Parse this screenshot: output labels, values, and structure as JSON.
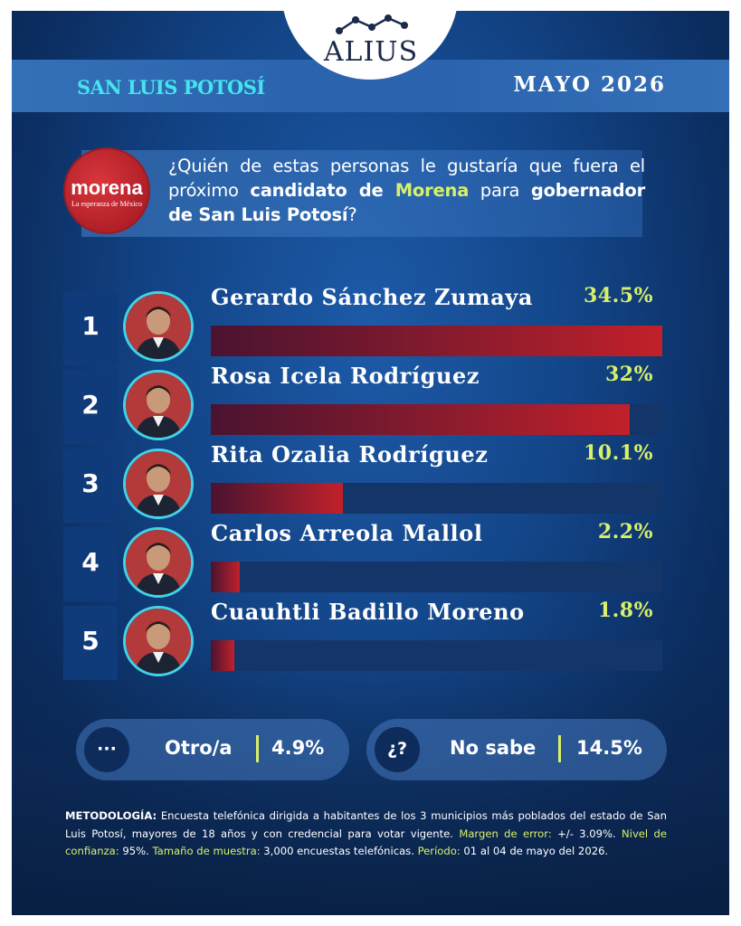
{
  "brand": {
    "name": "ALIUS",
    "region": "SAN LUIS POTOSÍ",
    "date": "MAYO 2026"
  },
  "party_logo": {
    "name": "morena",
    "tagline": "La esperanza de México",
    "color": "#b11f27"
  },
  "question": {
    "p1": "¿Quién de estas personas le gustaría que fuera el próximo ",
    "b1": "candidato de ",
    "b2": "Morena",
    "p2": " para ",
    "b3": "gobernador de San Luis Potosí",
    "p3": "?"
  },
  "chart_data": {
    "type": "bar",
    "orientation": "horizontal",
    "categories": [
      "Gerardo Sánchez Zumaya",
      "Rosa Icela Rodríguez",
      "Rita Ozalia Rodríguez",
      "Carlos Arreola Mallol",
      "Cuauhtli Badillo Moreno"
    ],
    "ranks": [
      "1",
      "2",
      "3",
      "4",
      "5"
    ],
    "values": [
      34.5,
      32,
      10.1,
      2.2,
      1.8
    ],
    "value_labels": [
      "34.5%",
      "32%",
      "10.1%",
      "2.2%",
      "1.8%"
    ],
    "xlim": [
      0,
      34.5
    ],
    "bar_color": "#c2202a",
    "label_color": "#d8f06a"
  },
  "other": {
    "icon": "···",
    "label": "Otro/a",
    "value": "4.9%"
  },
  "unknown": {
    "icon": "¿?",
    "label": "No sabe",
    "value": "14.5%"
  },
  "methodology": {
    "k1": "METODOLOGÍA:",
    "t1": " Encuesta telefónica dirigida a habitantes de los 3 municipios más poblados del estado de San Luis Potosí, mayores de 18 años y con credencial para votar vigente. ",
    "k2": "Margen de error:",
    "t2": " +/- 3.09%. ",
    "k3": "Nivel de confianza:",
    "t3": " 95%. ",
    "k4": "Tamaño de muestra:",
    "t4": " 3,000 encuestas telefónicas. ",
    "k5": "Período:",
    "t5": " 01 al 04 de mayo del 2026."
  }
}
